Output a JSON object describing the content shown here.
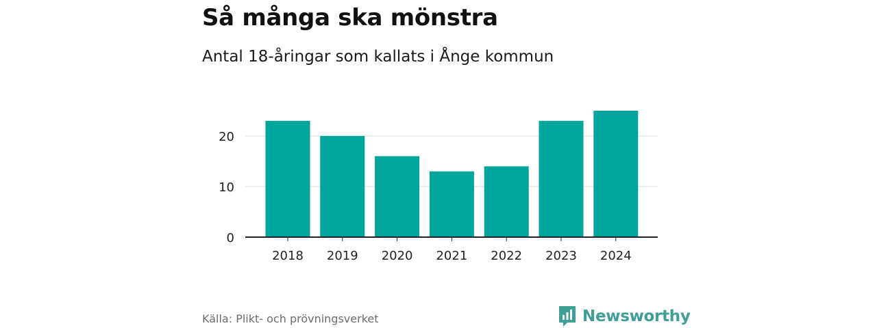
{
  "header": {
    "title": "Så många ska mönstra",
    "subtitle": "Antal 18-åringar som kallats i Ånge kommun"
  },
  "footer": {
    "source": "Källa: Plikt- och prövningsverket",
    "brand": "Newsworthy"
  },
  "colors": {
    "bar": "#00a59b",
    "grid": "#d9d9d9",
    "axis": "#222222",
    "brand": "#3f9f97"
  },
  "chart_data": {
    "type": "bar",
    "categories": [
      "2018",
      "2019",
      "2020",
      "2021",
      "2022",
      "2023",
      "2024"
    ],
    "values": [
      23,
      20,
      16,
      13,
      14,
      23,
      25
    ],
    "ylim": [
      0,
      25
    ],
    "yticks": [
      0,
      10,
      20
    ],
    "grid": true,
    "legend": "none"
  }
}
